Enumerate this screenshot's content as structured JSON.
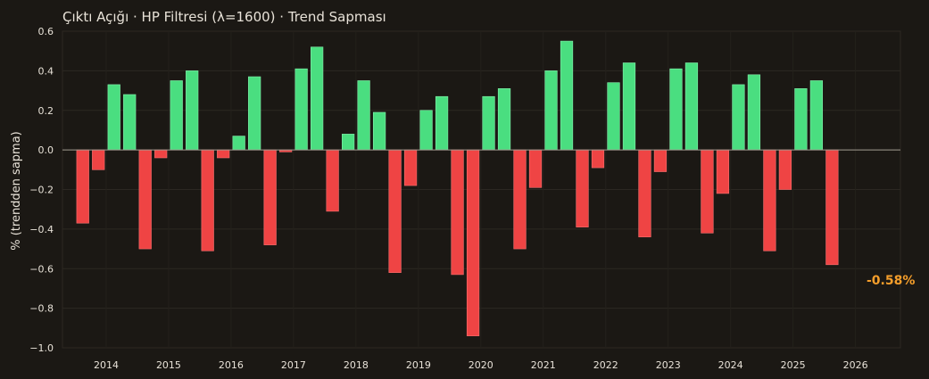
{
  "chart_data": {
    "type": "bar",
    "title": "Çıktı Açığı · HP Filtresi (λ=1600) · Trend Sapması",
    "xlabel": "",
    "ylabel": "% (trendden sapma)",
    "ylim": [
      -1.0,
      0.6
    ],
    "yticks": [
      0.6,
      0.4,
      0.2,
      0.0,
      -0.2,
      -0.4,
      -0.6,
      -0.8,
      -1.0
    ],
    "ytick_labels": [
      "0.6",
      "0.4",
      "0.2",
      "0.0",
      "−0.2",
      "−0.4",
      "−0.6",
      "−0.8",
      "−1.0"
    ],
    "xticks": [
      "2014",
      "2015",
      "2016",
      "2017",
      "2018",
      "2019",
      "2020",
      "2021",
      "2022",
      "2023",
      "2024",
      "2025",
      "2026"
    ],
    "x_start": 2013.625,
    "x_step": 0.25,
    "values": [
      -0.37,
      -0.1,
      0.33,
      0.28,
      -0.5,
      -0.04,
      0.35,
      0.4,
      -0.51,
      -0.04,
      0.07,
      0.37,
      -0.48,
      -0.01,
      0.41,
      0.52,
      -0.31,
      0.08,
      0.35,
      0.19,
      -0.62,
      -0.18,
      0.2,
      0.27,
      -0.63,
      -0.94,
      0.27,
      0.31,
      -0.5,
      -0.19,
      0.4,
      0.55,
      -0.39,
      -0.09,
      0.34,
      0.44,
      -0.44,
      -0.11,
      0.41,
      0.44,
      -0.42,
      -0.22,
      0.33,
      0.38,
      -0.51,
      -0.2,
      0.31,
      0.35,
      -0.58
    ],
    "last_value_label": "-0.58%",
    "grid": true,
    "colors": {
      "positive": "#4ade80",
      "negative": "#ef4444",
      "last_label": "#f59e2b",
      "background": "#1b1814",
      "zero_line": "#a09a90"
    }
  }
}
